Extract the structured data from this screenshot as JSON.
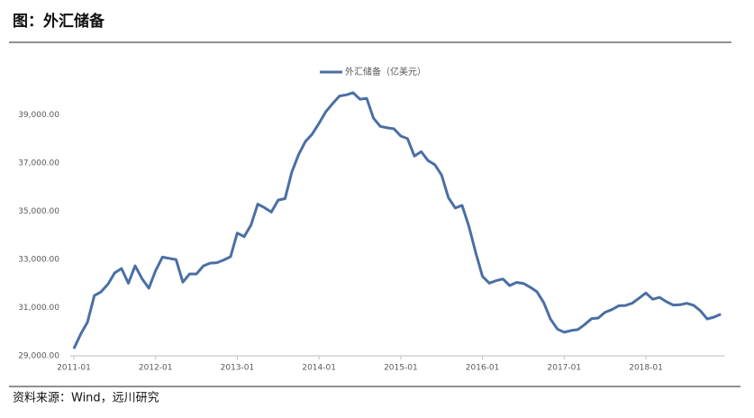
{
  "chart_data": {
    "type": "line",
    "title": "图：外汇储备",
    "source": "资料来源：Wind，远川研究",
    "categories": [
      "2011-01",
      null,
      null,
      null,
      null,
      null,
      null,
      null,
      null,
      null,
      null,
      null,
      "2012-01",
      null,
      null,
      null,
      null,
      null,
      null,
      null,
      null,
      null,
      null,
      null,
      "2013-01",
      null,
      null,
      null,
      null,
      null,
      null,
      null,
      null,
      null,
      null,
      null,
      "2014-01",
      null,
      null,
      null,
      null,
      null,
      null,
      null,
      null,
      null,
      null,
      null,
      "2015-01",
      null,
      null,
      null,
      null,
      null,
      null,
      null,
      null,
      null,
      null,
      null,
      "2016-01",
      null,
      null,
      null,
      null,
      null,
      null,
      null,
      null,
      null,
      null,
      null,
      "2017-01",
      null,
      null,
      null,
      null,
      null,
      null,
      null,
      null,
      null,
      null,
      null,
      "2018-01",
      null,
      null,
      null,
      null,
      null,
      null,
      null,
      null,
      null,
      null,
      null
    ],
    "series": [
      {
        "name": "外汇储备（亿美元）",
        "color": "#4a6fa5",
        "values": [
          29300,
          29900,
          30400,
          31500,
          31660,
          31975,
          32450,
          32625,
          32017,
          32738,
          32209,
          31811,
          32536,
          33100,
          33050,
          33000,
          32060,
          32400,
          32400,
          32730,
          32850,
          32870,
          32980,
          33116,
          34100,
          33950,
          34430,
          35300,
          35150,
          34970,
          35470,
          35530,
          36630,
          37360,
          37900,
          38213,
          38660,
          39140,
          39480,
          39790,
          39840,
          39930,
          39660,
          39690,
          38870,
          38530,
          38470,
          38430,
          38130,
          38020,
          37300,
          37480,
          37110,
          36940,
          36510,
          35570,
          35140,
          35250,
          34380,
          33300,
          32300,
          32020,
          32120,
          32190,
          31920,
          32050,
          32010,
          31850,
          31660,
          31210,
          30520,
          30110,
          29980,
          30050,
          30090,
          30300,
          30540,
          30570,
          30810,
          30920,
          31080,
          31090,
          31190,
          31400,
          31610,
          31350,
          31430,
          31250,
          31110,
          31120,
          31180,
          31100,
          30870,
          30530,
          30610,
          30730
        ]
      }
    ],
    "ylim": [
      29000,
      40000
    ],
    "yticks": [
      {
        "value": 29000,
        "label": "29,000.00"
      },
      {
        "value": 31000,
        "label": "31,000.00"
      },
      {
        "value": 33000,
        "label": "33,000.00"
      },
      {
        "value": 35000,
        "label": "35,000.00"
      },
      {
        "value": 37000,
        "label": "37,000.00"
      },
      {
        "value": 39000,
        "label": "39,000.00"
      }
    ]
  }
}
